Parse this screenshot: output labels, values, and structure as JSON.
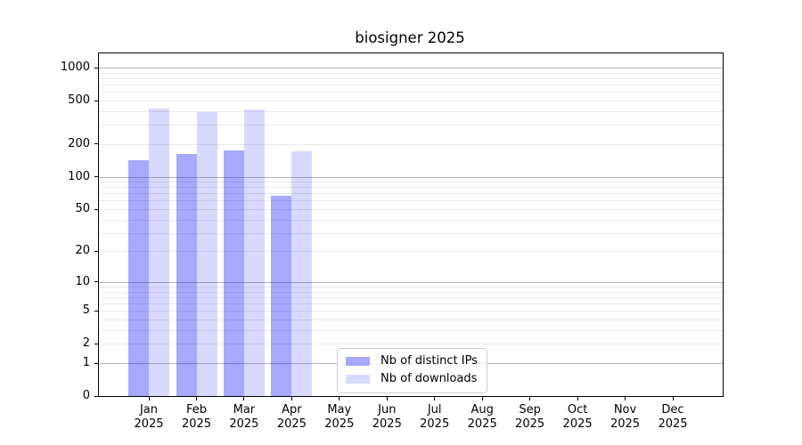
{
  "chart_data": {
    "type": "bar",
    "title": "biosigner 2025",
    "categories": [
      "Jan",
      "Feb",
      "Mar",
      "Apr",
      "May",
      "Jun",
      "Jul",
      "Aug",
      "Sep",
      "Oct",
      "Nov",
      "Dec"
    ],
    "category_year": "2025",
    "series": [
      {
        "name": "Nb of distinct IPs",
        "color": "rgba(0,0,255,0.34)",
        "values": [
          142,
          162,
          175,
          66,
          0,
          0,
          0,
          0,
          0,
          0,
          0,
          0
        ]
      },
      {
        "name": "Nb of downloads",
        "color": "rgba(0,0,255,0.15)",
        "values": [
          423,
          389,
          418,
          172,
          0,
          0,
          0,
          0,
          0,
          0,
          0,
          0
        ]
      }
    ],
    "xlabel": "",
    "ylabel": "",
    "y_axis": {
      "scale": "log1p",
      "tick_labels": [
        0,
        1,
        2,
        5,
        10,
        20,
        50,
        100,
        200,
        500,
        1000
      ],
      "major_gridlines": [
        1,
        10,
        100,
        1000
      ],
      "minor_gridlines": [
        2,
        3,
        4,
        5,
        6,
        7,
        8,
        9,
        20,
        30,
        40,
        50,
        60,
        70,
        80,
        90,
        200,
        300,
        400,
        500,
        600,
        700,
        800,
        900
      ],
      "top_value": 1350
    },
    "grid": true,
    "legend_position": "lower-center-inside",
    "colors": {
      "bar_distinct_ips": "#a8a8f9",
      "bar_downloads": "#d9d9f9",
      "grid_major": "#b4b4b4",
      "grid_minor": "#e9e9e9",
      "spine": "#000000",
      "text": "#000000",
      "background": "#ffffff"
    }
  }
}
